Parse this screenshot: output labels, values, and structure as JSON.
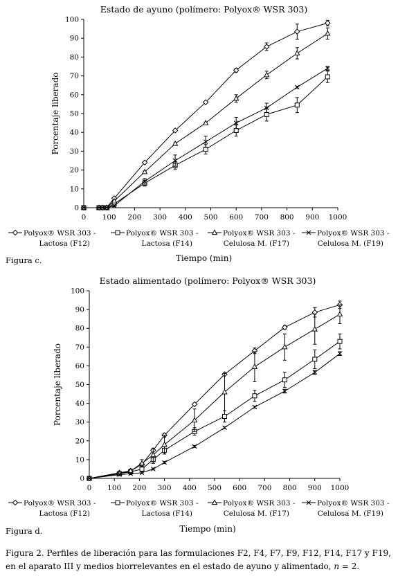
{
  "chart_data": [
    {
      "type": "line",
      "title": "Estado de ayuno (polímero: Polyox® WSR 303)",
      "xlabel": "Tiempo (min)",
      "ylabel": "Porcentaje liberado",
      "figure_label": "Figura c.",
      "xlim": [
        0,
        1000
      ],
      "ylim": [
        0,
        100
      ],
      "xticks": [
        "0",
        "100",
        "200",
        "300",
        "400",
        "500",
        "600",
        "700",
        "800",
        "900",
        "1000"
      ],
      "yticks": [
        "0",
        "10",
        "20",
        "30",
        "40",
        "50",
        "60",
        "70",
        "80",
        "90",
        "100"
      ],
      "grid": false,
      "legend_position": "bottom",
      "series": [
        {
          "name_line1": "Polyox® WSR 303 -",
          "name_line2": "Lactosa (F12)",
          "marker": "diamond",
          "points": [
            [
              0,
              0
            ],
            [
              60,
              0
            ],
            [
              75,
              0
            ],
            [
              90,
              0
            ],
            [
              120,
              5
            ],
            [
              240,
              24
            ],
            [
              360,
              41
            ],
            [
              480,
              56
            ],
            [
              600,
              73
            ],
            [
              720,
              85.5
            ],
            [
              840,
              93.5
            ],
            [
              960,
              98
            ]
          ],
          "errors": [
            0,
            0,
            0,
            0,
            0.5,
            0.5,
            0.5,
            0.5,
            1,
            2,
            4,
            1.5
          ]
        },
        {
          "name_line1": "Polyox® WSR 303 -",
          "name_line2": "Lactosa (F14)",
          "marker": "square",
          "points": [
            [
              0,
              0
            ],
            [
              60,
              0
            ],
            [
              75,
              0
            ],
            [
              90,
              0
            ],
            [
              120,
              2
            ],
            [
              240,
              13
            ],
            [
              360,
              22.5
            ],
            [
              480,
              31
            ],
            [
              600,
              41
            ],
            [
              720,
              49.5
            ],
            [
              840,
              54.5
            ],
            [
              960,
              69.5
            ]
          ],
          "errors": [
            0,
            0,
            0,
            0,
            0.5,
            1.5,
            2,
            2.5,
            3,
            3.5,
            4,
            3
          ]
        },
        {
          "name_line1": "Polyox® WSR 303 -",
          "name_line2": "Celulosa M. (F17)",
          "marker": "triangle",
          "points": [
            [
              0,
              0
            ],
            [
              60,
              0
            ],
            [
              75,
              0
            ],
            [
              90,
              0
            ],
            [
              120,
              3.5
            ],
            [
              240,
              19
            ],
            [
              360,
              34
            ],
            [
              480,
              45
            ],
            [
              600,
              58
            ],
            [
              720,
              70.5
            ],
            [
              840,
              82
            ],
            [
              960,
              92.5
            ]
          ],
          "errors": [
            0,
            0,
            0,
            0,
            0.5,
            0.5,
            0.5,
            0.5,
            2,
            2,
            3,
            3
          ]
        },
        {
          "name_line1": "Polyox® WSR 303 -",
          "name_line2": "Celulosa M. (F19)",
          "marker": "x",
          "points": [
            [
              0,
              0
            ],
            [
              60,
              0
            ],
            [
              75,
              0
            ],
            [
              90,
              0
            ],
            [
              120,
              1
            ],
            [
              240,
              14
            ],
            [
              360,
              25
            ],
            [
              480,
              35
            ],
            [
              600,
              45
            ],
            [
              720,
              53
            ],
            [
              840,
              64
            ],
            [
              960,
              74
            ]
          ],
          "errors": [
            0,
            0,
            0,
            0,
            0.5,
            1.5,
            3,
            3,
            3,
            2.5,
            0.5,
            1
          ]
        }
      ]
    },
    {
      "type": "line",
      "title": "Estado alimentado (polímero: Polyox® WSR 303)",
      "xlabel": "Tiempo (min)",
      "ylabel": "Porcentaje liberado",
      "figure_label": "Figura d.",
      "xlim": [
        0,
        1000
      ],
      "ylim": [
        0,
        100
      ],
      "xticks": [
        "0",
        "100",
        "200",
        "300",
        "400",
        "500",
        "600",
        "700",
        "800",
        "900",
        "1000"
      ],
      "yticks": [
        "0",
        "10",
        "20",
        "30",
        "40",
        "50",
        "60",
        "70",
        "80",
        "90",
        "100"
      ],
      "grid": false,
      "legend_position": "bottom",
      "series": [
        {
          "name_line1": "Polyox® WSR 303 -",
          "name_line2": "Lactosa (F12)",
          "marker": "diamond",
          "points": [
            [
              0,
              0
            ],
            [
              120,
              3
            ],
            [
              165,
              4
            ],
            [
              210,
              7.5
            ],
            [
              255,
              15
            ],
            [
              300,
              23
            ],
            [
              420,
              39.5
            ],
            [
              540,
              55.5
            ],
            [
              660,
              68
            ],
            [
              780,
              80.5
            ],
            [
              900,
              88.5
            ],
            [
              1000,
              92.5
            ]
          ],
          "errors": [
            0,
            0.5,
            0.5,
            0.5,
            0.5,
            1,
            0.5,
            0.5,
            1.5,
            1,
            2.5,
            2
          ]
        },
        {
          "name_line1": "Polyox® WSR 303 -",
          "name_line2": "Lactosa (F14)",
          "marker": "square",
          "points": [
            [
              0,
              0
            ],
            [
              120,
              2.5
            ],
            [
              165,
              3.5
            ],
            [
              210,
              5
            ],
            [
              255,
              10
            ],
            [
              300,
              15
            ],
            [
              420,
              25
            ],
            [
              540,
              33
            ],
            [
              660,
              44
            ],
            [
              780,
              52.5
            ],
            [
              900,
              63.5
            ],
            [
              1000,
              73
            ]
          ],
          "errors": [
            0,
            0.5,
            0.5,
            1.5,
            2,
            2,
            2,
            3,
            3,
            4,
            5,
            4
          ]
        },
        {
          "name_line1": "Polyox® WSR 303 -",
          "name_line2": "Celulosa M. (F17)",
          "marker": "triangle",
          "points": [
            [
              0,
              0
            ],
            [
              120,
              2.5
            ],
            [
              165,
              4
            ],
            [
              210,
              8
            ],
            [
              255,
              12.5
            ],
            [
              300,
              18
            ],
            [
              420,
              31
            ],
            [
              540,
              46
            ],
            [
              660,
              59.5
            ],
            [
              780,
              70
            ],
            [
              900,
              79.5
            ],
            [
              1000,
              87.5
            ]
          ],
          "errors": [
            0,
            0.5,
            1,
            2,
            3.5,
            5,
            6,
            10,
            8,
            7,
            8,
            5
          ]
        },
        {
          "name_line1": "Polyox® WSR 303 -",
          "name_line2": "Celulosa M. (F19)",
          "marker": "x",
          "points": [
            [
              0,
              0
            ],
            [
              120,
              2
            ],
            [
              165,
              2.5
            ],
            [
              210,
              3
            ],
            [
              255,
              5
            ],
            [
              300,
              8.5
            ],
            [
              420,
              17
            ],
            [
              540,
              27
            ],
            [
              660,
              38
            ],
            [
              780,
              46.5
            ],
            [
              900,
              56.5
            ],
            [
              1000,
              66.5
            ]
          ],
          "errors": [
            0,
            0.5,
            0.5,
            0.5,
            0.5,
            0.5,
            0.5,
            0.5,
            0.5,
            1,
            1,
            1
          ]
        }
      ]
    }
  ],
  "caption": {
    "main": "Figura 2. Perfiles de liberación para las formulaciones F2, F4, F7, F9, F12, F14, F17 y F19, en el aparato III y medios biorrelevantes en el estado de ayuno y alimentado, ",
    "n_symbol": "n",
    "n_value": " = 2."
  }
}
